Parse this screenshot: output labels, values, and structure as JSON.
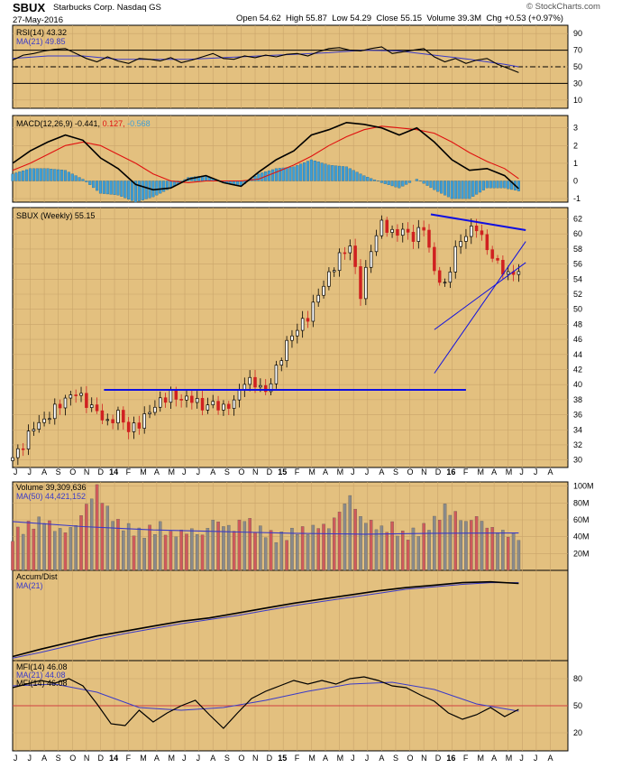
{
  "header": {
    "ticker": "SBUX",
    "company": "Starbucks Corp.",
    "exchange": "Nasdaq GS",
    "date": "27-May-2016",
    "open_label": "Open",
    "open": "54.62",
    "high_label": "High",
    "high": "55.87",
    "low_label": "Low",
    "low": "54.29",
    "close_label": "Close",
    "close": "55.15",
    "volume_label": "Volume",
    "volume": "39.3M",
    "chg_label": "Chg",
    "chg": "+0.53 (+0.97%)",
    "logo": "© StockCharts.com"
  },
  "colors": {
    "panel_bg": "#e3c07f",
    "plot_line": "#000000",
    "ma_line": "#3a3ac8",
    "signal_line": "#e01010",
    "hist_bar": "#3e9ed6",
    "up_candle": "#000000",
    "down_candle": "#d02020",
    "trendline": "#1010e0",
    "vol_up": "#8a8a8a",
    "vol_down": "#d05a5a",
    "mfi_ref": "#d04040"
  },
  "x_axis": {
    "labels": [
      "J",
      "J",
      "A",
      "S",
      "O",
      "N",
      "D",
      "14",
      "F",
      "M",
      "A",
      "M",
      "J",
      "J",
      "A",
      "S",
      "O",
      "N",
      "D",
      "15",
      "F",
      "M",
      "A",
      "M",
      "J",
      "J",
      "A",
      "S",
      "O",
      "N",
      "D",
      "16",
      "F",
      "M",
      "A",
      "M",
      "J",
      "J",
      "A"
    ],
    "bold_labels": [
      "14",
      "15",
      "16"
    ]
  },
  "chart_data": [
    {
      "type": "line",
      "panel": "rsi",
      "legend": [
        "RSI(14) 43.32",
        "MA(21) 49.85"
      ],
      "ylim": [
        0,
        100
      ],
      "ticks": [
        90,
        70,
        50,
        30,
        10
      ],
      "ref_lines": [
        70,
        50,
        30
      ],
      "series": [
        {
          "name": "RSI(14)",
          "x": [
            0,
            3,
            6,
            9,
            12,
            15,
            18,
            21,
            24,
            27,
            30,
            33,
            36,
            39,
            42,
            45,
            48,
            51,
            54,
            57,
            60,
            63,
            66,
            69,
            72,
            75,
            78,
            81,
            84,
            87,
            90,
            93,
            96,
            99,
            102,
            105,
            108,
            111,
            114,
            117,
            120,
            123,
            126,
            129,
            132,
            135,
            138,
            141,
            144
          ],
          "values": [
            58,
            64,
            66,
            69,
            71,
            72,
            66,
            60,
            56,
            62,
            57,
            54,
            60,
            59,
            57,
            61,
            55,
            58,
            62,
            66,
            60,
            59,
            63,
            61,
            64,
            62,
            65,
            66,
            63,
            68,
            72,
            73,
            70,
            69,
            72,
            74,
            66,
            68,
            70,
            72,
            62,
            56,
            60,
            54,
            58,
            60,
            53,
            48,
            43
          ]
        },
        {
          "name": "MA(21)",
          "x": [
            0,
            10,
            20,
            30,
            40,
            50,
            60,
            70,
            80,
            90,
            100,
            110,
            120,
            130,
            140,
            144
          ],
          "values": [
            60,
            63,
            63,
            59,
            59,
            59,
            61,
            63,
            65,
            67,
            70,
            69,
            64,
            59,
            53,
            50
          ]
        }
      ]
    },
    {
      "type": "line",
      "panel": "macd",
      "legend": [
        "MACD(12,26,9)",
        "-0.441",
        "0.127",
        "-0.568"
      ],
      "ylim": [
        -1.2,
        3.7
      ],
      "ticks": [
        3,
        2,
        1,
        0,
        -1
      ],
      "series": [
        {
          "name": "MACD",
          "x": [
            0,
            5,
            10,
            15,
            20,
            25,
            30,
            35,
            40,
            45,
            50,
            55,
            60,
            65,
            70,
            75,
            80,
            85,
            90,
            95,
            100,
            105,
            110,
            115,
            120,
            125,
            130,
            135,
            140,
            144
          ],
          "values": [
            1.0,
            1.7,
            2.2,
            2.6,
            2.3,
            1.3,
            0.7,
            -0.2,
            -0.5,
            -0.4,
            0.1,
            0.3,
            -0.1,
            -0.3,
            0.5,
            1.2,
            1.7,
            2.6,
            2.9,
            3.3,
            3.2,
            3.0,
            2.6,
            3.0,
            2.2,
            1.2,
            0.6,
            0.7,
            0.3,
            -0.44
          ]
        },
        {
          "name": "Signal",
          "x": [
            0,
            5,
            10,
            15,
            20,
            25,
            30,
            35,
            40,
            45,
            50,
            55,
            60,
            65,
            70,
            75,
            80,
            85,
            90,
            95,
            100,
            105,
            110,
            115,
            120,
            125,
            130,
            135,
            140,
            144
          ],
          "values": [
            0.6,
            1.0,
            1.5,
            2.0,
            2.2,
            2.0,
            1.5,
            1.0,
            0.4,
            0.0,
            -0.1,
            0.0,
            0.0,
            0.0,
            0.1,
            0.5,
            0.9,
            1.4,
            2.0,
            2.5,
            2.9,
            3.1,
            3.0,
            2.9,
            2.7,
            2.2,
            1.6,
            1.1,
            0.7,
            0.13
          ]
        },
        {
          "name": "Histogram",
          "x": [
            0,
            5,
            10,
            15,
            20,
            25,
            30,
            35,
            40,
            45,
            50,
            55,
            60,
            65,
            70,
            75,
            80,
            85,
            90,
            95,
            100,
            105,
            110,
            115,
            120,
            125,
            130,
            135,
            140,
            144
          ],
          "values": [
            0.4,
            0.7,
            0.7,
            0.6,
            0.1,
            -0.7,
            -0.8,
            -1.2,
            -0.9,
            -0.4,
            0.2,
            0.3,
            -0.1,
            -0.3,
            0.4,
            0.7,
            0.8,
            1.2,
            0.9,
            0.8,
            0.3,
            -0.1,
            -0.4,
            0.1,
            -0.5,
            -1.0,
            -1.0,
            -0.4,
            -0.4,
            -0.57
          ]
        }
      ]
    },
    {
      "type": "candlestick",
      "panel": "price",
      "legend": [
        "SBUX (Weekly) 55.15"
      ],
      "ylim": [
        29,
        63.5
      ],
      "ticks": [
        62,
        60,
        58,
        56,
        54,
        52,
        50,
        48,
        46,
        44,
        42,
        40,
        38,
        36,
        34,
        32,
        30
      ],
      "series": [
        {
          "name": "Close",
          "x": [
            0,
            3,
            6,
            9,
            12,
            15,
            18,
            21,
            24,
            27,
            30,
            33,
            36,
            39,
            42,
            45,
            48,
            51,
            54,
            57,
            60,
            63,
            66,
            69,
            72,
            75,
            78,
            81,
            84,
            87,
            90,
            93,
            96,
            99,
            102,
            105,
            108,
            111,
            114,
            117,
            120,
            123,
            126,
            129,
            132,
            135,
            138,
            141,
            144
          ],
          "values": [
            30.3,
            32,
            34.5,
            35.2,
            36.8,
            38,
            39,
            37.5,
            36.5,
            34.8,
            36.2,
            34,
            34.8,
            36.5,
            37.8,
            38.7,
            38,
            38.2,
            37,
            37.5,
            36.8,
            37.8,
            40.5,
            40.2,
            39,
            42,
            45.5,
            47.5,
            49,
            52,
            54.5,
            57,
            58.5,
            52,
            58,
            61.5,
            60,
            60.5,
            59.5,
            61,
            55,
            53,
            58,
            60,
            61,
            58,
            56,
            54.5,
            55.15
          ]
        }
      ],
      "annotations": [
        {
          "type": "horizontal-trendline",
          "x": [
            26,
            129
          ],
          "values": [
            39.3,
            39.3
          ]
        },
        {
          "type": "trendline",
          "x": [
            119,
            146
          ],
          "values": [
            62.6,
            60.5
          ]
        },
        {
          "type": "trendline",
          "x": [
            120,
            146
          ],
          "values": [
            41.5,
            59
          ]
        },
        {
          "type": "trendline",
          "x": [
            120,
            146
          ],
          "values": [
            47.3,
            56.2
          ]
        }
      ]
    },
    {
      "type": "bar",
      "panel": "volume",
      "legend": [
        "Volume 39,309,636",
        "MA(50) 44,421,152"
      ],
      "ylim": [
        0,
        105
      ],
      "ticks": [
        "100M",
        "80M",
        "60M",
        "40M",
        "20M"
      ],
      "tick_values": [
        100,
        80,
        60,
        40,
        20
      ],
      "series": [
        {
          "name": "Volume",
          "x": [
            0,
            3,
            6,
            9,
            12,
            15,
            18,
            21,
            24,
            27,
            30,
            33,
            36,
            39,
            42,
            45,
            48,
            51,
            54,
            57,
            60,
            63,
            66,
            69,
            72,
            75,
            78,
            81,
            84,
            87,
            90,
            93,
            96,
            99,
            102,
            105,
            108,
            111,
            114,
            117,
            120,
            123,
            126,
            129,
            132,
            135,
            138,
            141,
            144
          ],
          "values": [
            42,
            50,
            55,
            60,
            48,
            45,
            52,
            75,
            95,
            70,
            55,
            50,
            45,
            48,
            52,
            42,
            44,
            46,
            40,
            58,
            52,
            48,
            62,
            50,
            45,
            40,
            42,
            48,
            46,
            52,
            50,
            68,
            85,
            60,
            55,
            48,
            52,
            42,
            45,
            50,
            58,
            72,
            65,
            55,
            62,
            50,
            46,
            42,
            39.3
          ]
        },
        {
          "name": "MA(50)",
          "x": [
            0,
            20,
            40,
            60,
            80,
            100,
            120,
            144
          ],
          "values": [
            58,
            52,
            48,
            46,
            44,
            43,
            44,
            44.4
          ]
        }
      ]
    },
    {
      "type": "line",
      "panel": "accum_dist",
      "legend": [
        "Accum/Dist",
        "MA(21)"
      ],
      "series": [
        {
          "name": "Accum/Dist",
          "x": [
            0,
            8,
            16,
            24,
            32,
            40,
            48,
            56,
            64,
            72,
            80,
            88,
            96,
            104,
            112,
            120,
            128,
            136,
            144
          ],
          "values": [
            5,
            14,
            22,
            30,
            36,
            42,
            48,
            52,
            58,
            64,
            70,
            75,
            80,
            85,
            89,
            92,
            95,
            96,
            94
          ]
        },
        {
          "name": "MA(21)",
          "x": [
            0,
            8,
            16,
            24,
            32,
            40,
            48,
            56,
            64,
            72,
            80,
            88,
            96,
            104,
            112,
            120,
            128,
            136,
            144
          ],
          "values": [
            3,
            10,
            18,
            26,
            33,
            39,
            45,
            50,
            55,
            61,
            67,
            72,
            77,
            82,
            87,
            90,
            93,
            95,
            95
          ]
        }
      ]
    },
    {
      "type": "line",
      "panel": "mfi",
      "legend": [
        "MFI(14) 46.08",
        "MA(21) 44.08",
        "MFI(14) 46.08"
      ],
      "ylim": [
        0,
        100
      ],
      "ticks": [
        80,
        50,
        20
      ],
      "ref_lines": [
        80,
        50,
        20
      ],
      "series": [
        {
          "name": "MFI(14)",
          "x": [
            0,
            4,
            8,
            12,
            16,
            20,
            24,
            28,
            32,
            36,
            40,
            44,
            48,
            52,
            56,
            60,
            64,
            68,
            72,
            76,
            80,
            84,
            88,
            92,
            96,
            100,
            104,
            108,
            112,
            116,
            120,
            124,
            128,
            132,
            136,
            140,
            144
          ],
          "values": [
            70,
            74,
            78,
            75,
            80,
            72,
            52,
            30,
            28,
            45,
            32,
            42,
            50,
            56,
            40,
            25,
            42,
            58,
            66,
            72,
            78,
            74,
            78,
            74,
            80,
            82,
            78,
            72,
            70,
            62,
            55,
            42,
            35,
            40,
            48,
            38,
            46
          ]
        },
        {
          "name": "MA(21)",
          "x": [
            0,
            12,
            24,
            36,
            48,
            60,
            72,
            84,
            96,
            108,
            120,
            132,
            144
          ],
          "values": [
            72,
            74,
            65,
            48,
            45,
            48,
            56,
            66,
            74,
            76,
            68,
            52,
            44
          ]
        }
      ]
    }
  ]
}
